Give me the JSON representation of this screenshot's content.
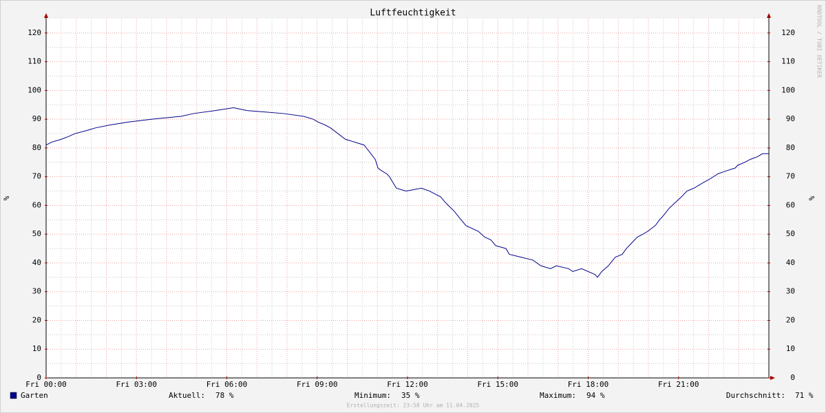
{
  "chart_data": {
    "type": "line",
    "title": "Luftfeuchtigkeit",
    "ylabel": "%",
    "y2label": "%",
    "watermark": "RRDTOOL / TOBI OETIKER",
    "footer": "Erstellungszeit: 23:58 Uhr am 11.04.2025",
    "xlim": [
      0,
      24
    ],
    "xticks": [
      {
        "value": 0,
        "label": "Fri 00:00"
      },
      {
        "value": 3,
        "label": "Fri 03:00"
      },
      {
        "value": 6,
        "label": "Fri 06:00"
      },
      {
        "value": 9,
        "label": "Fri 09:00"
      },
      {
        "value": 12,
        "label": "Fri 12:00"
      },
      {
        "value": 15,
        "label": "Fri 15:00"
      },
      {
        "value": 18,
        "label": "Fri 18:00"
      },
      {
        "value": 21,
        "label": "Fri 21:00"
      }
    ],
    "ylim": [
      0,
      125
    ],
    "yticks": [
      0,
      10,
      20,
      30,
      40,
      50,
      60,
      70,
      80,
      90,
      100,
      110,
      120
    ],
    "y2lim": [
      0,
      125
    ],
    "y2ticks": [
      0,
      10,
      20,
      30,
      40,
      50,
      60,
      70,
      80,
      90,
      100,
      110,
      120
    ],
    "grid": true,
    "series": [
      {
        "name": "Garten",
        "color": "#00008b",
        "x": [
          0,
          0.18,
          0.5,
          0.75,
          0.96,
          1.33,
          1.65,
          2.13,
          2.72,
          3.52,
          4.48,
          4.91,
          5.62,
          6.22,
          6.67,
          7.86,
          8.55,
          8.87,
          9.03,
          9.26,
          9.44,
          9.94,
          10.56,
          10.93,
          11.02,
          11.15,
          11.31,
          11.4,
          11.63,
          11.95,
          12.46,
          12.73,
          12.91,
          13.1,
          13.26,
          13.55,
          13.78,
          13.94,
          14.35,
          14.56,
          14.77,
          14.93,
          15.27,
          15.38,
          15.77,
          16.16,
          16.43,
          16.75,
          16.94,
          17.35,
          17.49,
          17.78,
          18.22,
          18.31,
          18.45,
          18.67,
          18.9,
          19.13,
          19.27,
          19.45,
          19.63,
          19.82,
          19.98,
          20.23,
          20.37,
          20.46,
          20.69,
          20.89,
          21.1,
          21.28,
          21.51,
          21.67,
          21.83,
          22.01,
          22.31,
          22.58,
          22.88,
          22.97,
          23.2,
          23.38,
          23.63,
          23.79,
          24
        ],
        "values": [
          81,
          82,
          83,
          84,
          85,
          86,
          87,
          88,
          89,
          90,
          91,
          92,
          93,
          94,
          93,
          92,
          91,
          90,
          89,
          88,
          87,
          83,
          81,
          76,
          73,
          72,
          71,
          70,
          66,
          65,
          66,
          65,
          64,
          63,
          61,
          58,
          55,
          53,
          51,
          49,
          48,
          46,
          45,
          43,
          42,
          41,
          39,
          38,
          39,
          38,
          37,
          38,
          36,
          35,
          37,
          39,
          42,
          43,
          45,
          47,
          49,
          50,
          51,
          53,
          55,
          56,
          59,
          61,
          63,
          65,
          66,
          67,
          68,
          69,
          71,
          72,
          73,
          74,
          75,
          76,
          77,
          78,
          78
        ]
      }
    ],
    "stats": [
      {
        "label": "Aktuell:",
        "value": "78 %"
      },
      {
        "label": "Minimum:",
        "value": "35 %"
      },
      {
        "label": "Maximum:",
        "value": "94 %"
      },
      {
        "label": "Durchschnitt:",
        "value": "71 %"
      }
    ]
  }
}
